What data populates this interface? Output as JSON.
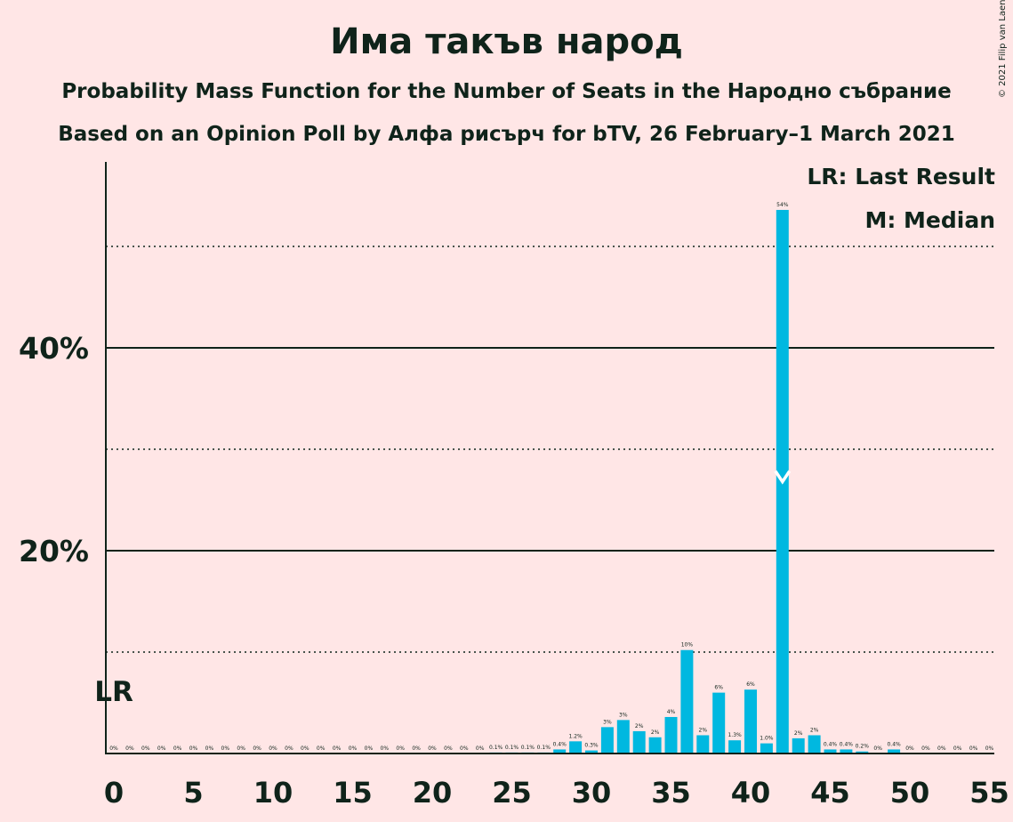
{
  "chart_data": {
    "type": "bar",
    "title": "Има такъв народ",
    "subtitle": "Probability Mass Function for the Number of Seats in the Народно събрание",
    "subtitle2": "Based on an Opinion Poll by Алфа рисърч for bTV, 26 February–1 March 2021",
    "copyright": "© 2021 Filip van Laenen",
    "legend": [
      "LR: Last Result",
      "M: Median"
    ],
    "last_result_label": "LR",
    "last_result_seat": 0,
    "median_seat": 42,
    "median_marker": "M",
    "xlim": [
      0,
      55
    ],
    "ylim": [
      0,
      58
    ],
    "x_ticks": [
      "0",
      "5",
      "10",
      "15",
      "20",
      "25",
      "30",
      "35",
      "40",
      "45",
      "50",
      "55"
    ],
    "y_ticks": [
      "20%",
      "40%"
    ],
    "y_major_gridlines": [
      20,
      40
    ],
    "y_minor_gridlines": [
      10,
      30,
      50
    ],
    "bar_color": "#00B8E0",
    "x": [
      0,
      1,
      2,
      3,
      4,
      5,
      6,
      7,
      8,
      9,
      10,
      11,
      12,
      13,
      14,
      15,
      16,
      17,
      18,
      19,
      20,
      21,
      22,
      23,
      24,
      25,
      26,
      27,
      28,
      29,
      30,
      31,
      32,
      33,
      34,
      35,
      36,
      37,
      38,
      39,
      40,
      41,
      42,
      43,
      44,
      45,
      46,
      47,
      48,
      49,
      50,
      51,
      52,
      53,
      54,
      55
    ],
    "values": [
      0,
      0,
      0,
      0,
      0,
      0,
      0,
      0,
      0,
      0,
      0,
      0,
      0,
      0,
      0,
      0,
      0,
      0,
      0,
      0,
      0,
      0,
      0,
      0,
      0.1,
      0.1,
      0.1,
      0.1,
      0.4,
      1.2,
      0.3,
      2.6,
      3.3,
      2.2,
      1.6,
      3.6,
      10.2,
      1.8,
      6.0,
      1.3,
      6.3,
      1.0,
      53.6,
      1.5,
      1.8,
      0.4,
      0.4,
      0.2,
      0,
      0.4,
      0,
      0,
      0,
      0,
      0,
      0
    ],
    "data_labels": [
      "0%",
      "0%",
      "0%",
      "0%",
      "0%",
      "0%",
      "0%",
      "0%",
      "0%",
      "0%",
      "0%",
      "0%",
      "0%",
      "0%",
      "0%",
      "0%",
      "0%",
      "0%",
      "0%",
      "0%",
      "0%",
      "0%",
      "0%",
      "0%",
      "0.1%",
      "0.1%",
      "0.1%",
      "0.1%",
      "0.4%",
      "1.2%",
      "0.3%",
      "3%",
      "3%",
      "2%",
      "2%",
      "4%",
      "10%",
      "2%",
      "6%",
      "1.3%",
      "6%",
      "1.0%",
      "54%",
      "2%",
      "2%",
      "0.4%",
      "0.4%",
      "0.2%",
      "0%",
      "0.4%",
      "0%",
      "0%",
      "0%",
      "0%",
      "0%",
      "0%"
    ]
  }
}
